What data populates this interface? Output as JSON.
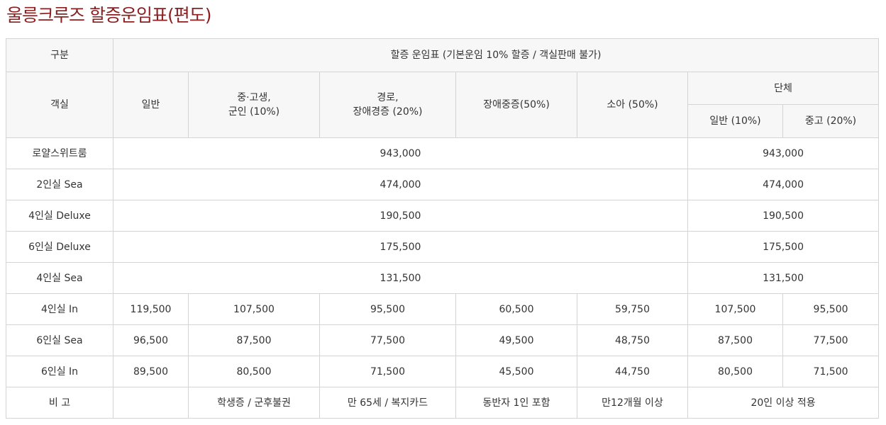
{
  "title": "울릉크루즈 할증운임표(편도)",
  "header": {
    "category": "구분",
    "fare_title": "할증 운임표 (기본운임 10% 할증 / 객실판매 불가)",
    "cabin": "객실",
    "general": "일반",
    "student": "중·고생,\n군인 (10%)",
    "senior": "경로,\n장애경증 (20%)",
    "disabled_severe": "장애중증(50%)",
    "child": "소아 (50%)",
    "group": "단체",
    "group_general": "일반 (10%)",
    "group_student": "중고 (20%)"
  },
  "merged_rows": [
    {
      "cabin": "로얄스위트룸",
      "fare": "943,000",
      "group": "943,000"
    },
    {
      "cabin": "2인실 Sea",
      "fare": "474,000",
      "group": "474,000"
    },
    {
      "cabin": "4인실 Deluxe",
      "fare": "190,500",
      "group": "190,500"
    },
    {
      "cabin": "6인실 Deluxe",
      "fare": "175,500",
      "group": "175,500"
    },
    {
      "cabin": "4인실 Sea",
      "fare": "131,500",
      "group": "131,500"
    }
  ],
  "detail_rows": [
    {
      "cabin": "4인실 In",
      "general": "119,500",
      "student": "107,500",
      "senior": "95,500",
      "disabled_severe": "60,500",
      "child": "59,750",
      "group_general": "107,500",
      "group_student": "95,500"
    },
    {
      "cabin": "6인실 Sea",
      "general": "96,500",
      "student": "87,500",
      "senior": "77,500",
      "disabled_severe": "49,500",
      "child": "48,750",
      "group_general": "87,500",
      "group_student": "77,500"
    },
    {
      "cabin": "6인실 In",
      "general": "89,500",
      "student": "80,500",
      "senior": "71,500",
      "disabled_severe": "45,500",
      "child": "44,750",
      "group_general": "80,500",
      "group_student": "71,500"
    }
  ],
  "remarks": {
    "label": "비 고",
    "general": "",
    "student": "학생증 / 군후불권",
    "senior": "만 65세 / 복지카드",
    "disabled_severe": "동반자 1인 포함",
    "child": "만12개월 이상",
    "group": "20인 이상 적용"
  },
  "colors": {
    "title": "#8b1f1f",
    "border": "#d4d4d4",
    "header_bg": "#f7f7f7"
  }
}
